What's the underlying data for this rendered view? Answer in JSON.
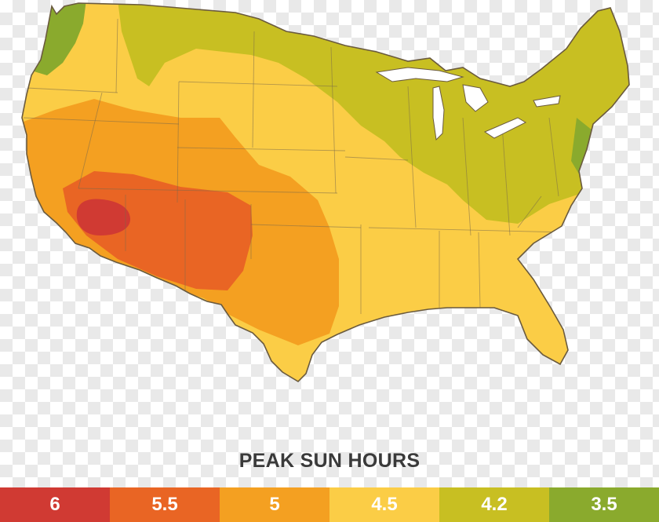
{
  "legend": {
    "title": "PEAK SUN HOURS",
    "items": [
      {
        "label": "6",
        "color": "#d03a33"
      },
      {
        "label": "5.5",
        "color": "#e96524"
      },
      {
        "label": "5",
        "color": "#f4a021"
      },
      {
        "label": "4.5",
        "color": "#fbcd46"
      },
      {
        "label": "4.2",
        "color": "#c8bf22"
      },
      {
        "label": "3.5",
        "color": "#8aaa2d"
      }
    ]
  }
}
